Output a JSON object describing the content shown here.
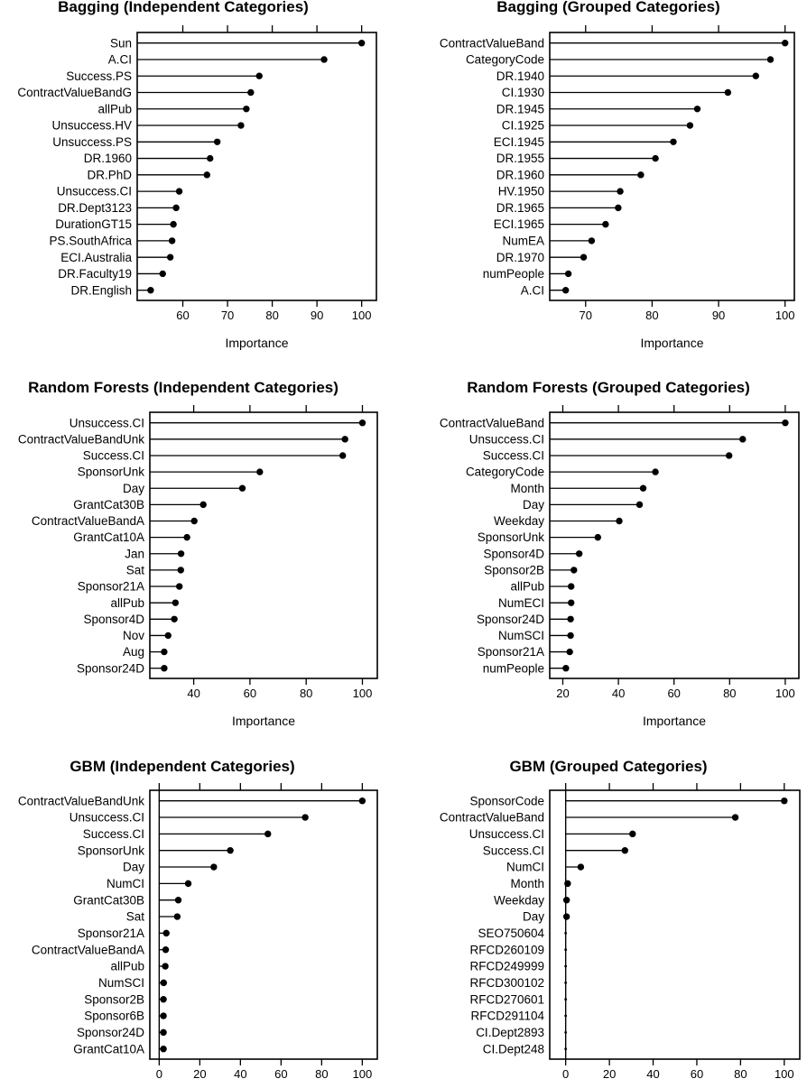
{
  "figure": {
    "background": "#ffffff",
    "ink_color": "#000000",
    "description": "Variable importance dot plots, 2 columns x 3 rows"
  },
  "chart_data": [
    {
      "type": "scatter",
      "variant": "lollipop-dotchart",
      "title": "Bagging (Independent Categories)",
      "xlabel": "Importance",
      "xlim": [
        49.8,
        103.3
      ],
      "xticks": [
        60,
        70,
        80,
        90,
        100
      ],
      "baseline": null,
      "grid": false,
      "categories": [
        "Sun",
        "A.CI",
        "Success.PS",
        "ContractValueBandG",
        "allPub",
        "Unsuccess.HV",
        "Unsuccess.PS",
        "DR.1960",
        "DR.PhD",
        "Unsuccess.CI",
        "DR.Dept3123",
        "DurationGT15",
        "PS.SouthAfrica",
        "ECI.Australia",
        "DR.Faculty19",
        "DR.English"
      ],
      "values": [
        100,
        91.6,
        77.1,
        75.2,
        74.2,
        73.0,
        67.7,
        66.1,
        65.4,
        59.2,
        58.5,
        57.9,
        57.6,
        57.2,
        55.5,
        52.8
      ]
    },
    {
      "type": "scatter",
      "variant": "lollipop-dotchart",
      "title": "Bagging (Grouped Categories)",
      "xlabel": "Importance",
      "xlim": [
        64.6,
        101.4
      ],
      "xticks": [
        70,
        80,
        90,
        100
      ],
      "baseline": null,
      "grid": false,
      "categories": [
        "ContractValueBand",
        "CategoryCode",
        "DR.1940",
        "CI.1930",
        "DR.1945",
        "CI.1925",
        "ECI.1945",
        "DR.1955",
        "DR.1960",
        "HV.1950",
        "DR.1965",
        "ECI.1965",
        "NumEA",
        "DR.1970",
        "numPeople",
        "A.CI"
      ],
      "values": [
        100,
        97.8,
        95.6,
        91.4,
        86.8,
        85.7,
        83.2,
        80.5,
        78.3,
        75.2,
        74.9,
        73.0,
        70.9,
        69.7,
        67.4,
        67.0
      ]
    },
    {
      "type": "scatter",
      "variant": "lollipop-dotchart",
      "title": "Random Forests (Independent Categories)",
      "xlabel": "Importance",
      "xlim": [
        24.4,
        105.3
      ],
      "xticks": [
        40,
        60,
        80,
        100
      ],
      "baseline": null,
      "grid": false,
      "categories": [
        "Unsuccess.CI",
        "ContractValueBandUnk",
        "Success.CI",
        "SponsorUnk",
        "Day",
        "GrantCat30B",
        "ContractValueBandA",
        "GrantCat10A",
        "Jan",
        "Sat",
        "Sponsor21A",
        "allPub",
        "Sponsor4D",
        "Nov",
        "Aug",
        "Sponsor24D"
      ],
      "values": [
        100,
        93.8,
        93.0,
        63.5,
        57.3,
        43.4,
        40.2,
        37.6,
        35.5,
        35.4,
        34.9,
        33.5,
        33.1,
        30.9,
        29.5,
        29.5
      ]
    },
    {
      "type": "scatter",
      "variant": "lollipop-dotchart",
      "title": "Random Forests (Grouped Categories)",
      "xlabel": "Importance",
      "xlim": [
        15.3,
        104.9
      ],
      "xticks": [
        20,
        40,
        60,
        80,
        100
      ],
      "baseline": null,
      "grid": false,
      "categories": [
        "ContractValueBand",
        "Unsuccess.CI",
        "Success.CI",
        "CategoryCode",
        "Month",
        "Day",
        "Weekday",
        "SponsorUnk",
        "Sponsor4D",
        "Sponsor2B",
        "allPub",
        "NumECI",
        "Sponsor24D",
        "NumSCI",
        "Sponsor21A",
        "numPeople"
      ],
      "values": [
        100,
        84.7,
        79.8,
        53.3,
        48.9,
        47.6,
        40.3,
        32.6,
        25.9,
        24.0,
        23.0,
        23.0,
        22.8,
        22.8,
        22.5,
        21.1
      ]
    },
    {
      "type": "scatter",
      "variant": "lollipop-dotchart",
      "title": "GBM (Independent Categories)",
      "xlabel": "",
      "xlim": [
        -4.6,
        107.4
      ],
      "xticks": [
        0,
        20,
        40,
        60,
        80,
        100
      ],
      "baseline": 0,
      "grid": false,
      "categories": [
        "ContractValueBandUnk",
        "Unsuccess.CI",
        "Success.CI",
        "SponsorUnk",
        "Day",
        "NumCI",
        "GrantCat30B",
        "Sat",
        "Sponsor21A",
        "ContractValueBandA",
        "allPub",
        "NumSCI",
        "Sponsor2B",
        "Sponsor6B",
        "Sponsor24D",
        "GrantCat10A"
      ],
      "values": [
        100,
        71.9,
        53.5,
        35.0,
        26.9,
        14.3,
        9.4,
        8.9,
        3.5,
        3.2,
        3.0,
        2.2,
        2.1,
        2.1,
        2.1,
        2.1
      ]
    },
    {
      "type": "scatter",
      "variant": "lollipop-dotchart",
      "title": "GBM (Grouped Categories)",
      "xlabel": "",
      "xlim": [
        -7.3,
        107.1
      ],
      "xticks": [
        0,
        20,
        40,
        60,
        80,
        100
      ],
      "baseline": 0,
      "grid": false,
      "categories": [
        "SponsorCode",
        "ContractValueBand",
        "Unsuccess.CI",
        "Success.CI",
        "NumCI",
        "Month",
        "Weekday",
        "Day",
        "SEO750604",
        "RFCD260109",
        "RFCD249999",
        "RFCD300102",
        "RFCD270601",
        "RFCD291104",
        "CI.Dept2893",
        "CI.Dept248"
      ],
      "values": [
        100,
        77.6,
        30.6,
        27.1,
        6.9,
        0.9,
        0.4,
        0.4,
        0,
        0,
        0,
        0,
        0,
        0,
        0,
        0
      ]
    }
  ]
}
